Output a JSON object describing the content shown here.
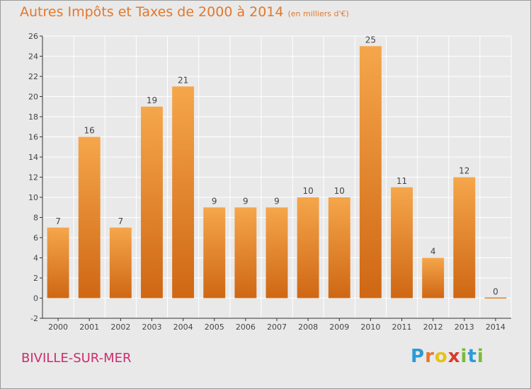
{
  "title": "Autres Impôts et Taxes de 2000 à 2014",
  "unit": "(en milliers d'€)",
  "place": "BIVILLE-SUR-MER",
  "logo": {
    "letters": [
      "P",
      "r",
      "o",
      "x",
      "i",
      "t",
      "i"
    ],
    "colors": [
      "#2a9bd6",
      "#e4772a",
      "#e4c21a",
      "#d93a2c",
      "#7cb93a",
      "#2a9bd6",
      "#7cb93a"
    ]
  },
  "colors": {
    "bar_top": "#f5a64b",
    "bar_bottom": "#cf6714",
    "axis": "#333333",
    "grid": "#ffffff",
    "label": "#444444"
  },
  "chart_data": {
    "type": "bar",
    "categories": [
      "2000",
      "2001",
      "2002",
      "2003",
      "2004",
      "2005",
      "2006",
      "2007",
      "2008",
      "2009",
      "2010",
      "2011",
      "2012",
      "2013",
      "2014"
    ],
    "values": [
      7,
      16,
      7,
      19,
      21,
      9,
      9,
      9,
      10,
      10,
      25,
      11,
      4,
      12,
      0
    ],
    "data_labels": [
      "7",
      "16",
      "7",
      "19",
      "21",
      "9",
      "9",
      "9",
      "10",
      "10",
      "25",
      "11",
      "4",
      "12",
      "0"
    ],
    "ylim": [
      -2,
      26
    ],
    "yticks": [
      -2,
      0,
      2,
      4,
      6,
      8,
      10,
      12,
      14,
      16,
      18,
      20,
      22,
      24,
      26
    ],
    "grid": true
  }
}
